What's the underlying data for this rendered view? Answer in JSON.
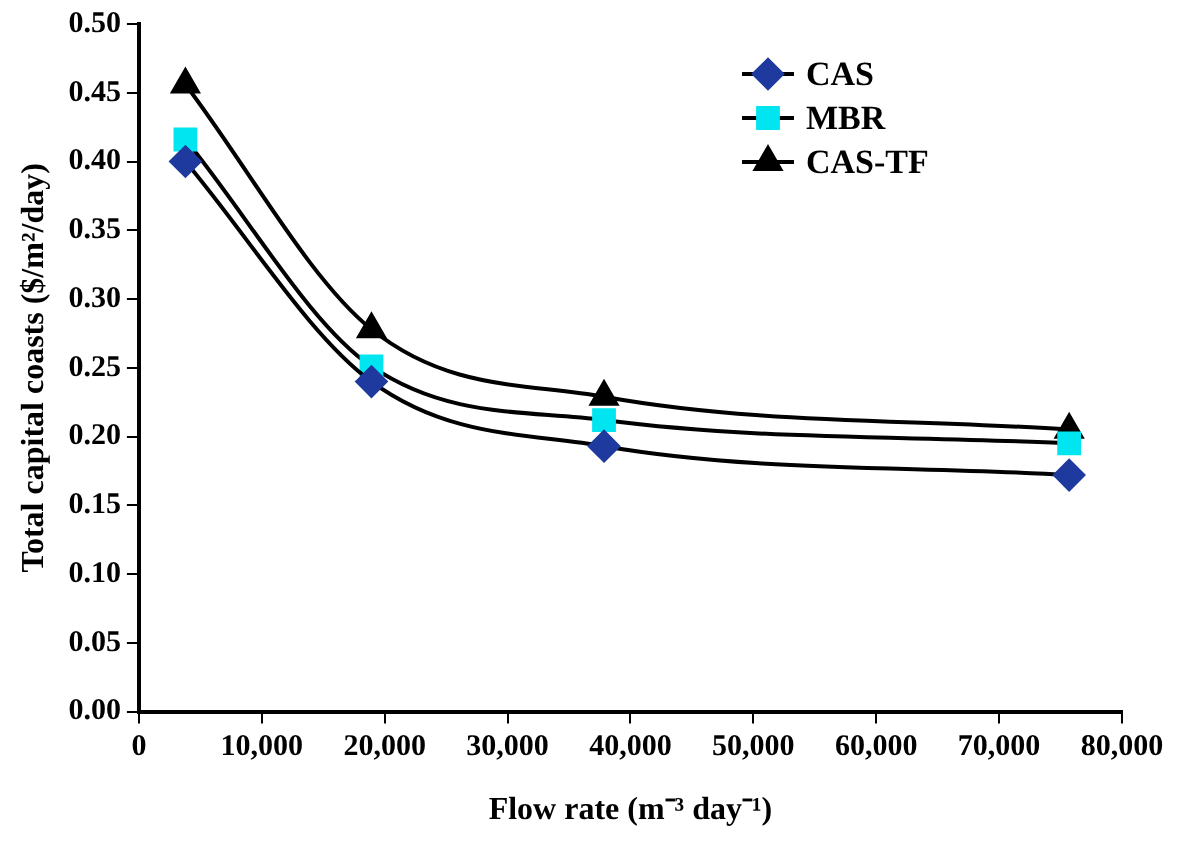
{
  "chart_data": {
    "type": "line",
    "xlabel": "Flow rate (m⁻³ day⁻¹)",
    "ylabel": "Total capital coasts ($/m²/day)",
    "x": [
      3785,
      18925,
      37850,
      75700
    ],
    "series": [
      {
        "name": "CAS",
        "color": "#1f3a9e",
        "marker": "diamond",
        "values": [
          0.4,
          0.24,
          0.193,
          0.172
        ]
      },
      {
        "name": "MBR",
        "color": "#00e5f0",
        "marker": "square",
        "values": [
          0.416,
          0.251,
          0.212,
          0.195
        ]
      },
      {
        "name": "CAS-TF",
        "color": "#000000",
        "marker": "triangle",
        "values": [
          0.456,
          0.278,
          0.229,
          0.205
        ]
      }
    ],
    "xlim": [
      0,
      80000
    ],
    "xticks": [
      0,
      {
        "value": 10000,
        "label": "10,000"
      },
      {
        "value": 20000,
        "label": "20,000"
      },
      {
        "value": 30000,
        "label": "30,000"
      },
      {
        "value": 40000,
        "label": "40,000"
      },
      {
        "value": 50000,
        "label": "50,000"
      },
      {
        "value": 60000,
        "label": "60,000"
      },
      {
        "value": 70000,
        "label": "70,000"
      },
      {
        "value": 80000,
        "label": "80,000"
      }
    ],
    "ylim": [
      0,
      0.5
    ],
    "yticks": [
      {
        "value": 0,
        "label": "0.00"
      },
      {
        "value": 0.05,
        "label": "0.05"
      },
      {
        "value": 0.1,
        "label": "0.10"
      },
      {
        "value": 0.15,
        "label": "0.15"
      },
      {
        "value": 0.2,
        "label": "0.20"
      },
      {
        "value": 0.25,
        "label": "0.25"
      },
      {
        "value": 0.3,
        "label": "0.30"
      },
      {
        "value": 0.35,
        "label": "0.35"
      },
      {
        "value": 0.4,
        "label": "0.40"
      },
      {
        "value": 0.45,
        "label": "0.45"
      },
      {
        "value": 0.5,
        "label": "0.50"
      }
    ],
    "grid": false,
    "legend": "top right",
    "line_style": "solid"
  }
}
